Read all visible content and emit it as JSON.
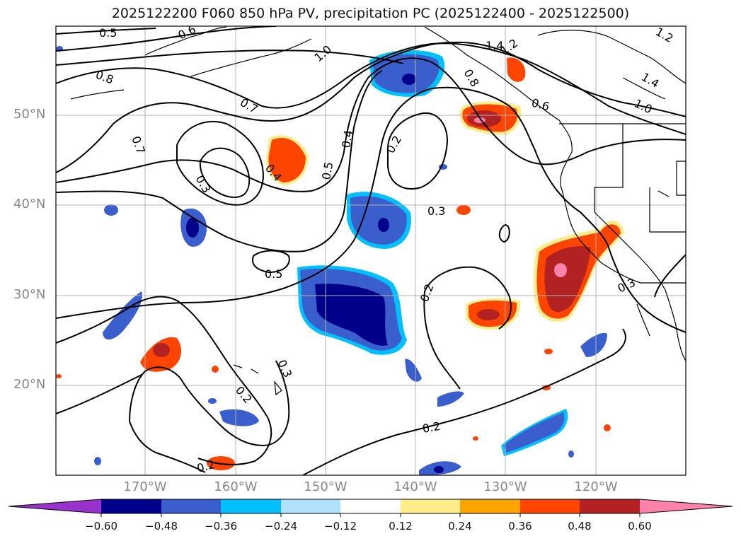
{
  "title": "2025122200 F060 850 hPa PV, precipitation PC (2025122400 - 2025122500)",
  "lat_labels": [
    "50°N",
    "40°N",
    "30°N",
    "20°N"
  ],
  "lon_labels": [
    "170°W",
    "160°W",
    "150°W",
    "140°W",
    "130°W",
    "120°W"
  ],
  "contour_labels": [
    "0.5",
    "0.6",
    "1.0",
    "1.4",
    "1.2",
    "1.2",
    "0.8",
    "0.7",
    "0.7",
    "1.4",
    "1.0",
    "0.8",
    "0.6",
    "0.3",
    "0.4",
    "0.5",
    "0.4",
    "0.2",
    "0.3",
    "0.5",
    "0.2",
    "0.3",
    "0.3",
    "0.2",
    "0.2",
    "0.2"
  ],
  "colorbar": {
    "ticks": [
      "−0.60",
      "−0.48",
      "−0.36",
      "−0.24",
      "−0.12",
      "0.12",
      "0.24",
      "0.36",
      "0.48",
      "0.60"
    ],
    "colors": [
      "#9932cc",
      "#00008b",
      "#3a5fcd",
      "#00bfff",
      "#b0e2ff",
      "#ffffff",
      "#ffec8b",
      "#ffa500",
      "#ff4500",
      "#b22222",
      "#ff82ab"
    ],
    "extend": "both"
  },
  "colors": {
    "frame": "#000000",
    "grid": "#b0b0b0",
    "axis_label": "#888888"
  }
}
